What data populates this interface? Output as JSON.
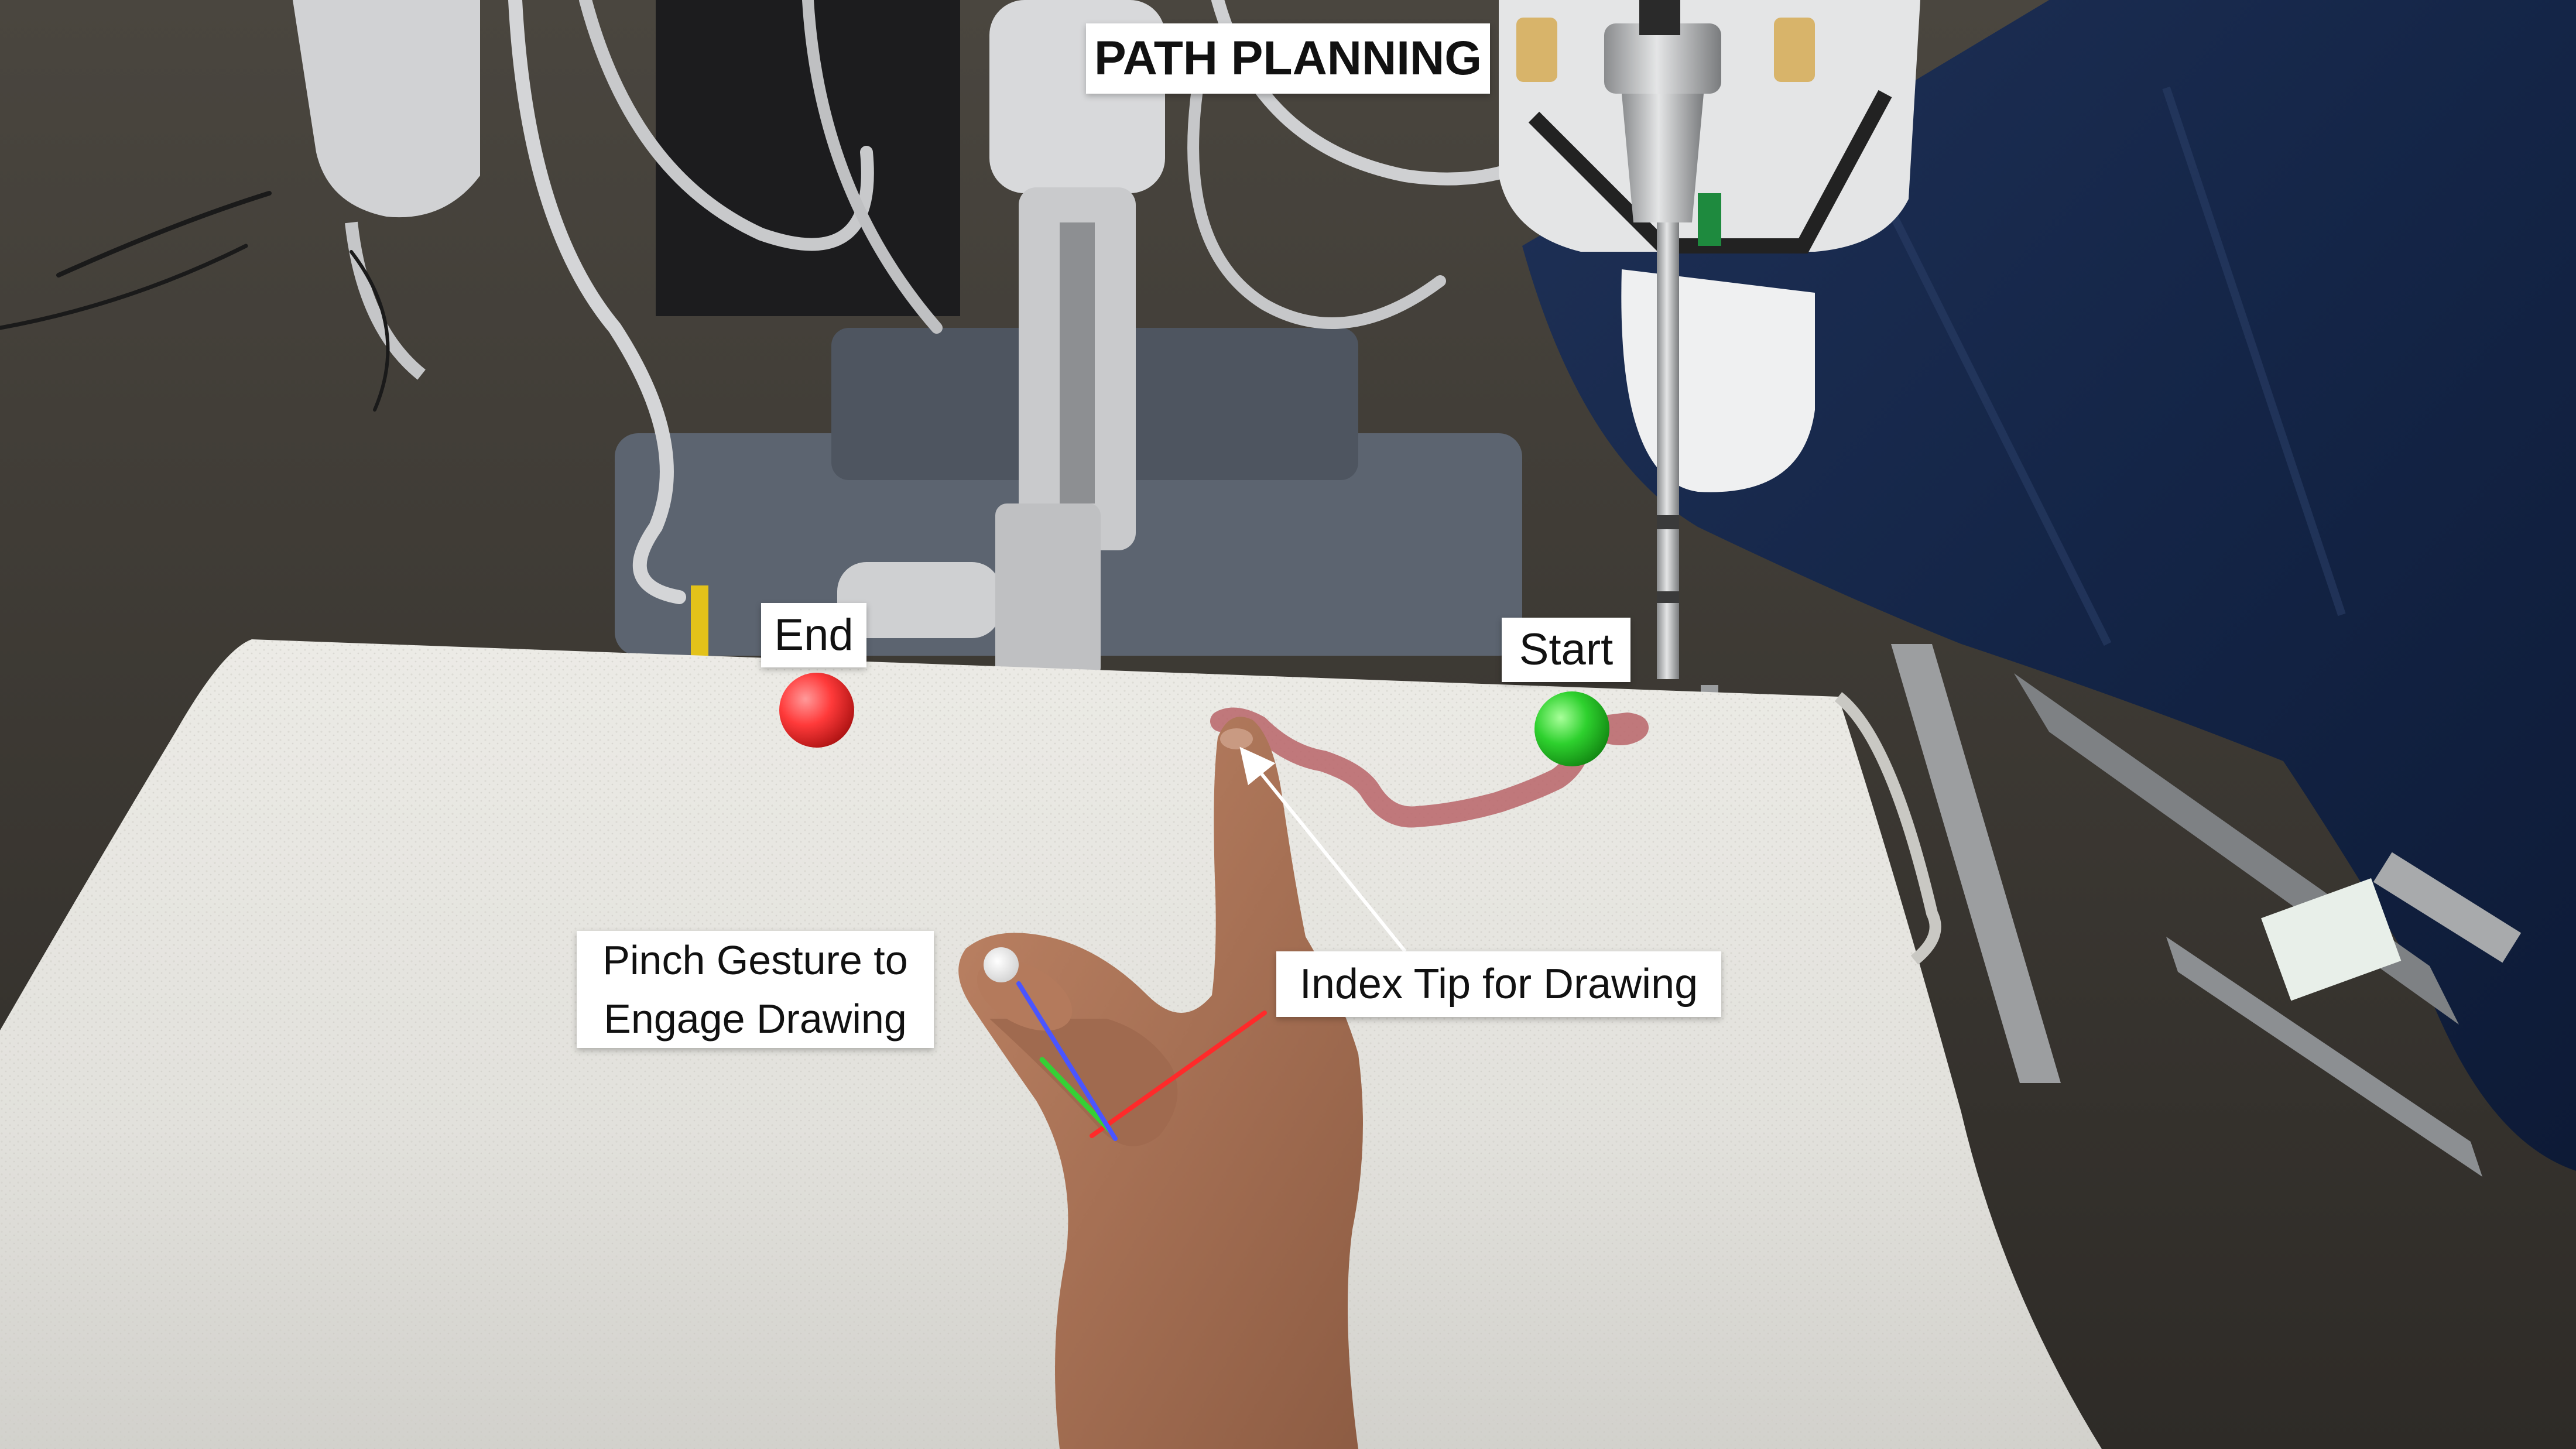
{
  "overlay": {
    "title": "PATH PLANNING",
    "end_label": "End",
    "start_label": "Start",
    "pinch_label_line1": "Pinch Gesture to",
    "pinch_label_line2": "Engage Drawing",
    "index_label": "Index Tip for Drawing"
  },
  "colors": {
    "end_marker": "#ff3a3a",
    "start_marker": "#2ed12e",
    "drawn_path": "#b86468",
    "pinch_marker": "#ffffff",
    "axis_x": "#ff2a2a",
    "axis_y": "#35d035",
    "axis_z": "#4a55ff",
    "arrow": "#ffffff"
  },
  "icons": {
    "end_marker": "red-sphere-icon",
    "start_marker": "green-sphere-icon",
    "pinch_marker": "white-sphere-icon"
  }
}
